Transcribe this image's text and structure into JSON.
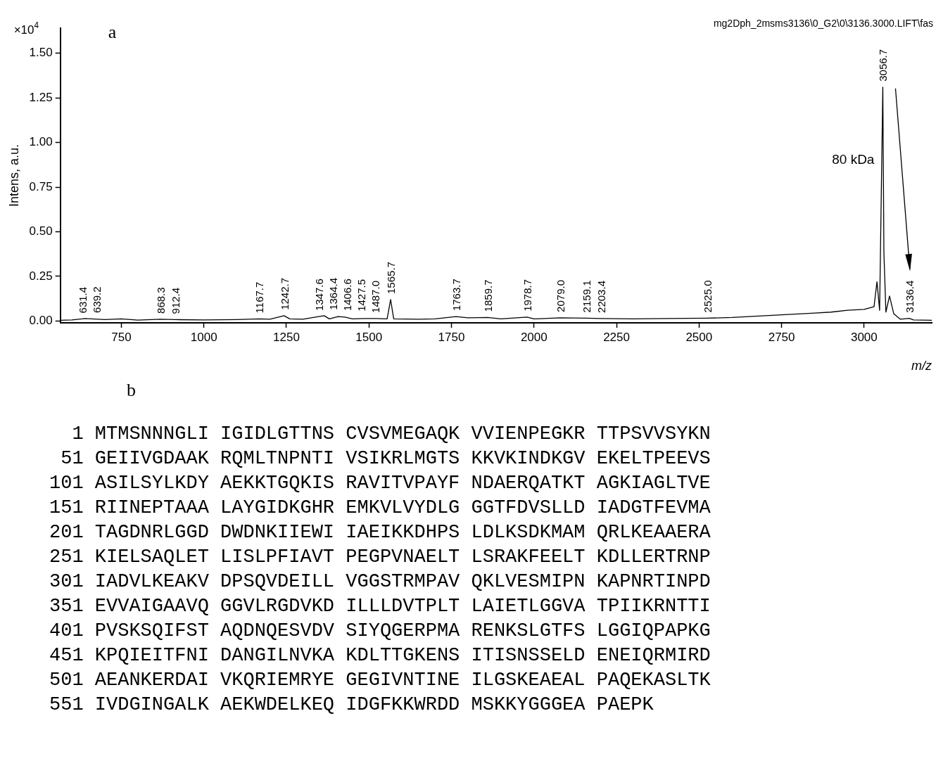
{
  "chart_data": [
    {
      "type": "line",
      "xlabel": "m/z",
      "ylabel": "Intens, a.u.",
      "xlim": [
        565,
        3205
      ],
      "xticks": [
        750,
        1000,
        1250,
        1500,
        1750,
        2000,
        2250,
        2500,
        2750,
        3000
      ],
      "ylim": [
        -0.01,
        1.64
      ],
      "yticks": [
        {
          "value": 0,
          "label": "0.00"
        },
        {
          "value": 0.25,
          "label": "0.25"
        },
        {
          "value": 0.5,
          "label": "0.50"
        },
        {
          "value": 0.75,
          "label": "0.75"
        },
        {
          "value": 1,
          "label": "1.00"
        },
        {
          "value": 1.25,
          "label": "1.25"
        },
        {
          "value": 1.5,
          "label": "1.50"
        }
      ],
      "grid": false,
      "legend": false,
      "marker": "none",
      "line_style": "solid",
      "series": [
        {
          "color": "#000000",
          "x": [
            565,
            600,
            631.4,
            639.2,
            700,
            750,
            800,
            868.3,
            912.4,
            1000,
            1100,
            1167.7,
            1200,
            1242.7,
            1260,
            1300,
            1347.6,
            1364.4,
            1380,
            1406.6,
            1427.5,
            1450,
            1487.0,
            1520,
            1555,
            1565.7,
            1575,
            1650,
            1700,
            1763.7,
            1800,
            1859.7,
            1900,
            1978.7,
            2000,
            2079.0,
            2159.1,
            2203.4,
            2300,
            2400,
            2525.0,
            2600,
            2650,
            2700,
            2750,
            2800,
            2850,
            2900,
            2950,
            3000,
            3030,
            3039,
            3047,
            3056.7,
            3060,
            3066,
            3077,
            3090,
            3110,
            3136.4,
            3150,
            3205
          ],
          "values": [
            0.004,
            0.006,
            0.012,
            0.014,
            0.008,
            0.012,
            0.005,
            0.01,
            0.008,
            0.006,
            0.008,
            0.012,
            0.01,
            0.03,
            0.012,
            0.01,
            0.025,
            0.03,
            0.012,
            0.025,
            0.022,
            0.012,
            0.014,
            0.014,
            0.012,
            0.12,
            0.012,
            0.01,
            0.012,
            0.025,
            0.018,
            0.02,
            0.012,
            0.022,
            0.012,
            0.018,
            0.016,
            0.014,
            0.012,
            0.014,
            0.016,
            0.02,
            0.025,
            0.03,
            0.035,
            0.04,
            0.045,
            0.05,
            0.06,
            0.065,
            0.08,
            0.22,
            0.06,
            1.31,
            0.38,
            0.05,
            0.14,
            0.04,
            0.01,
            0.015,
            0.006,
            0.004
          ]
        }
      ],
      "annotations": [
        "×10$^{4}$",
        "a",
        "mg2Dph_2msms3136\\0_G2\\0\\3136.3000.LIFT\\fas",
        {
          "text": "80 kDa",
          "x": 3056.7,
          "y": 0.9
        },
        {
          "text": "631.4",
          "x": 631.4,
          "y": 0.012
        },
        {
          "text": "639.2",
          "x": 639.2,
          "y": 0.014
        },
        {
          "text": "868.3",
          "x": 868.3,
          "y": 0.01
        },
        {
          "text": "912.4",
          "x": 912.4,
          "y": 0.008
        },
        {
          "text": "1167.7",
          "x": 1167.7,
          "y": 0.012
        },
        {
          "text": "1242.7",
          "x": 1242.7,
          "y": 0.03
        },
        {
          "text": "1347.6",
          "x": 1347.6,
          "y": 0.025
        },
        {
          "text": "1364.4",
          "x": 1364.4,
          "y": 0.03
        },
        {
          "text": "1406.6",
          "x": 1406.6,
          "y": 0.025
        },
        {
          "text": "1427.5",
          "x": 1427.5,
          "y": 0.022
        },
        {
          "text": "1487.0",
          "x": 1487.0,
          "y": 0.014
        },
        {
          "text": "1565.7",
          "x": 1565.7,
          "y": 0.12
        },
        {
          "text": "1763.7",
          "x": 1763.7,
          "y": 0.025
        },
        {
          "text": "1859.7",
          "x": 1859.7,
          "y": 0.02
        },
        {
          "text": "1978.7",
          "x": 1978.7,
          "y": 0.022
        },
        {
          "text": "2079.0",
          "x": 2079.0,
          "y": 0.018
        },
        {
          "text": "2159.1",
          "x": 2159.1,
          "y": 0.016
        },
        {
          "text": "2203.4",
          "x": 2203.4,
          "y": 0.014
        },
        {
          "text": "2525.0",
          "x": 2525.0,
          "y": 0.016
        },
        {
          "text": "3056.7",
          "x": 3056.7,
          "y": 1.31
        },
        {
          "text": "3136.4",
          "x": 3136.4,
          "y": 0.015
        }
      ]
    },
    {
      "type": "other",
      "annotations": [
        "b",
        "1 MTMSNNNGLI IGIDLGTTNS CVSVMEGAQK VVIENPEGKR TTPSVVSYKN",
        "51 GEIIVGDAAK RQMLTNPNTI VSIKRLMGTS KKVKINDKGV EKELTPEEVS",
        "101 ASILSYLKDY AEKKTGQKIS RAVITVPAYF NDAERQATKT AGKIAGLTVE",
        "151 RIINEPTAAA LAYGIDKGHR EMKVLVYDLG GGTFDVSLLD IADGTFEVMA",
        "201 TAGDNRLGGD DWDNKIIEWI IAEIKKDHPS LDLKSDKMAM QRLKEAAERA",
        "251 KIELSAQLET LISLPFIAVT PEGPVNAELT LSRAKFEELT KDLLERTRNP",
        "301 IADVLKEAKV DPSQVDEILL VGGSTRMPAV QKLVESMIPN KAPNRTINPD",
        "351 EVVAIGAAVQ GGVLRGDVKD ILLLDVTPLT LAIETLGGVA TPIIKRNTTI",
        "401 PVSKSQIFST AQDNQESVDV SIYQGERPMA RENKSLGTFS LGGIQPAPKG",
        "451 KPQIEITFNI DANGILNVKA KDLTTGKENS ITISNSSELD ENEIQRMIRD",
        "501 AEANKERDAI VKQRIEMRYE GEGIVNTINE ILGSKEAEAL PAQEKASLTK",
        "551 IVDGINGALK AEKWDELKEQ IDGFKKWRDD MSKKYGGGEA PAEPK"
      ]
    }
  ]
}
